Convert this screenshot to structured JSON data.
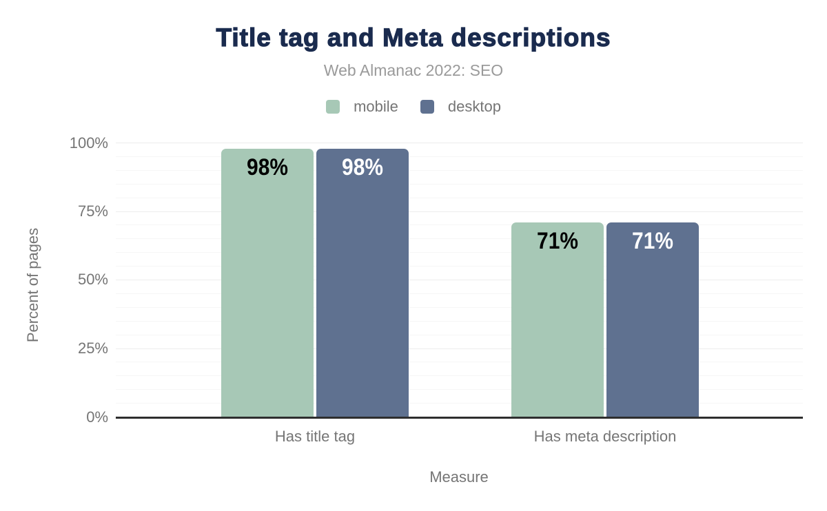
{
  "header": {
    "title": "Title tag and Meta descriptions",
    "subtitle": "Web Almanac 2022: SEO"
  },
  "legend": {
    "items": [
      {
        "label": "mobile",
        "color": "#a7c8b6"
      },
      {
        "label": "desktop",
        "color": "#5f7190"
      }
    ]
  },
  "y_axis": {
    "title": "Percent of pages",
    "ticks_top_to_bottom": [
      "100%",
      "75%",
      "50%",
      "25%",
      "0%"
    ]
  },
  "x_axis": {
    "title": "Measure",
    "categories": [
      "Has title tag",
      "Has meta description"
    ]
  },
  "chart_data": {
    "type": "bar",
    "title": "Title tag and Meta descriptions",
    "subtitle": "Web Almanac 2022: SEO",
    "categories": [
      "Has title tag",
      "Has meta description"
    ],
    "series": [
      {
        "name": "mobile",
        "color": "#a7c8b6",
        "label_color": "#000000",
        "values": [
          98,
          71
        ]
      },
      {
        "name": "desktop",
        "color": "#5f7190",
        "label_color": "#ffffff",
        "values": [
          98,
          71
        ]
      }
    ],
    "xlabel": "Measure",
    "ylabel": "Percent of pages",
    "ylim": [
      0,
      100
    ],
    "y_major_step": 25,
    "y_minor_step": 5,
    "value_suffix": "%",
    "grid": true,
    "legend_position": "top",
    "colors": {
      "title": "#1a2b4e",
      "subtitle_text": "#9a9a9a",
      "axis_text": "#757575",
      "axis_line": "#2e2e2e",
      "grid_major": "#ececec",
      "grid_minor": "#f6f6f6",
      "background": "#ffffff"
    }
  }
}
